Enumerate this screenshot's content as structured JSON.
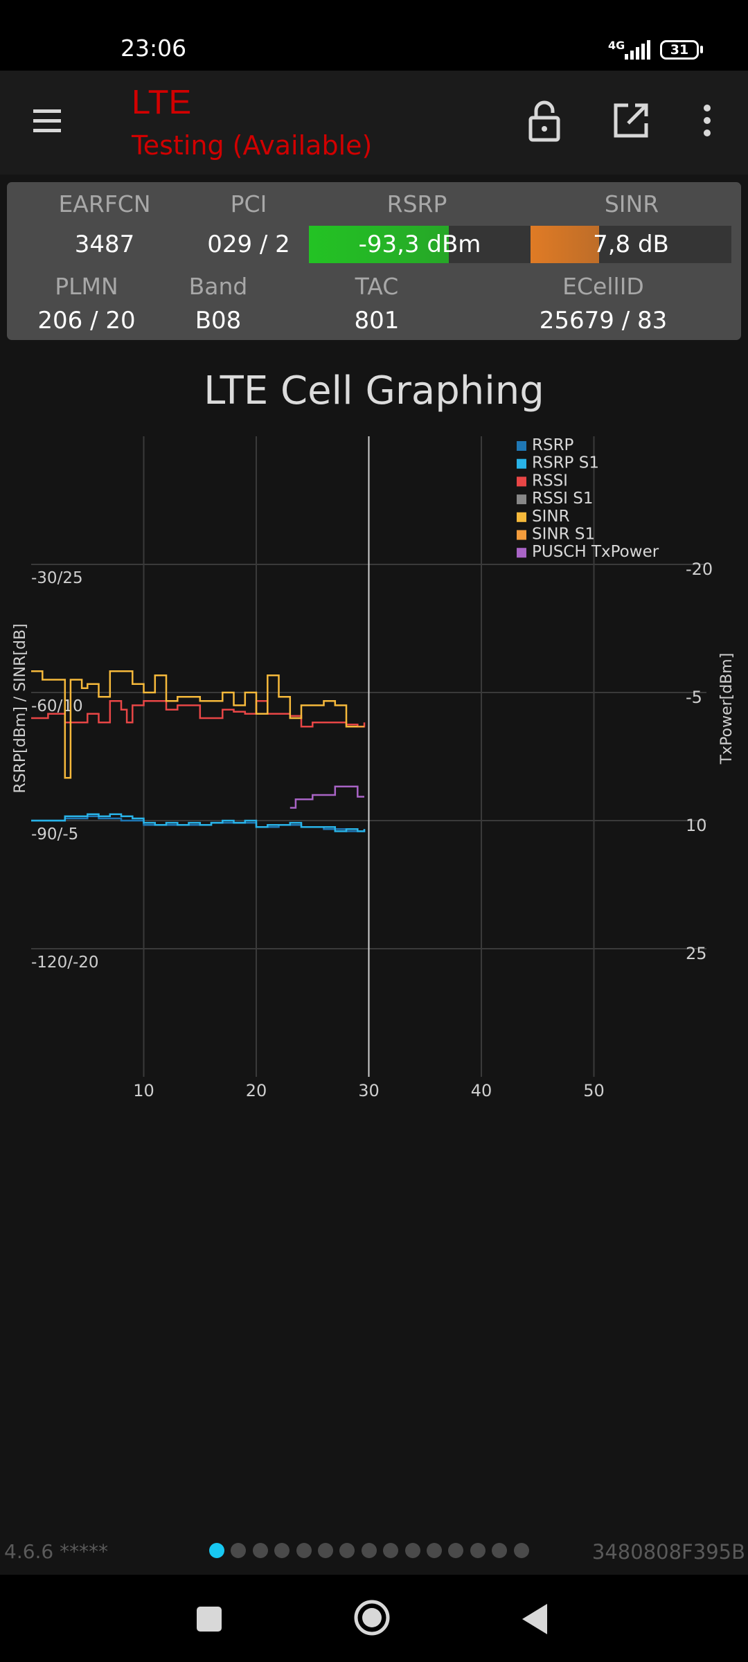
{
  "status_bar": {
    "time": "23:06",
    "network": "4G",
    "battery": "31"
  },
  "app_bar": {
    "title": "LTE",
    "subtitle": "Testing (Available)",
    "icons": [
      "menu-icon",
      "lock-open-icon",
      "open-external-icon",
      "more-vert-icon"
    ]
  },
  "cell_info": {
    "earfcn": {
      "label": "EARFCN",
      "value": "3487"
    },
    "pci": {
      "label": "PCI",
      "value": "029 / 2"
    },
    "rsrp": {
      "label": "RSRP",
      "value": "-93,3 dBm",
      "fill_fraction": 0.63,
      "color": "#23c324"
    },
    "sinr": {
      "label": "SINR",
      "value": "7,8 dB",
      "fill_fraction": 0.34,
      "color": "#e07b25"
    },
    "plmn": {
      "label": "PLMN",
      "value": "206 / 20"
    },
    "band": {
      "label": "Band",
      "value": "B08"
    },
    "tac": {
      "label": "TAC",
      "value": "801"
    },
    "ecellid": {
      "label": "ECellID",
      "value": "25679 / 83"
    }
  },
  "graph": {
    "title": "LTE Cell Graphing"
  },
  "chart_data": {
    "type": "line",
    "title": "LTE Cell Graphing",
    "xlabel": "",
    "ylabel_left": "RSRP[dBm] / SINR[dB]",
    "ylabel_right": "TxPower[dBm]",
    "x_ticks": [
      "10",
      "20",
      "30",
      "40",
      "50"
    ],
    "xlim": [
      0,
      60
    ],
    "y_left_ticks": [
      "-30/25",
      "-60/10",
      "-90/-5",
      "-120/-20"
    ],
    "y_right_ticks": [
      "-20",
      "-5",
      "10",
      "25"
    ],
    "ylim_rsrp": [
      -150,
      0
    ],
    "y_right_lim": [
      40,
      -35
    ],
    "cursor_x": 30,
    "grid": true,
    "legend_position": "top-right",
    "legend": [
      "RSRP",
      "RSRP S1",
      "RSSI",
      "RSSI S1",
      "SINR",
      "SINR S1",
      "PUSCH TxPower"
    ],
    "series": [
      {
        "name": "RSRP",
        "color": "#1f77b4",
        "axis": "rsrp",
        "x": [
          0,
          2,
          3,
          4,
          5,
          6,
          8,
          10,
          12,
          14,
          16,
          18,
          20,
          22,
          24,
          26,
          28,
          29.6
        ],
        "y": [
          -90,
          -90,
          -89.5,
          -89.5,
          -89,
          -89.5,
          -90,
          -91,
          -91,
          -91,
          -90.5,
          -90.5,
          -91.5,
          -91,
          -91.5,
          -92,
          -92.5,
          -92
        ]
      },
      {
        "name": "RSRP S1",
        "color": "#29b3e8",
        "axis": "rsrp",
        "x": [
          0,
          2,
          3,
          4,
          5,
          6,
          7,
          8,
          9,
          10,
          11,
          12,
          13,
          14,
          15,
          16,
          17,
          18,
          19,
          20,
          21,
          22,
          23,
          24,
          25,
          26,
          27,
          28,
          29,
          29.6
        ],
        "y": [
          -90,
          -90,
          -89,
          -89,
          -88.5,
          -89,
          -88.5,
          -89,
          -89.5,
          -90.5,
          -91,
          -90.5,
          -91,
          -90.5,
          -91,
          -90.5,
          -90,
          -90.5,
          -90,
          -91.5,
          -91,
          -91,
          -90.5,
          -91.5,
          -91.5,
          -91.5,
          -92.5,
          -92,
          -92.5,
          -92
        ]
      },
      {
        "name": "RSSI",
        "color": "#e84646",
        "axis": "rsrp",
        "x": [
          0,
          1.5,
          3,
          4,
          5,
          6,
          7,
          8,
          8.5,
          9,
          10,
          12,
          13,
          14,
          15,
          16,
          17,
          18,
          19,
          20,
          21,
          22,
          23,
          24,
          25,
          26,
          27,
          28,
          29,
          29.6
        ],
        "y": [
          -66,
          -65,
          -67,
          -67,
          -65,
          -67,
          -62,
          -64,
          -67,
          -63,
          -62,
          -64,
          -63,
          -63,
          -66,
          -66,
          -64,
          -64.5,
          -65,
          -62,
          -65,
          -65,
          -65.5,
          -68,
          -67,
          -67,
          -67,
          -67.5,
          -68,
          -67
        ]
      },
      {
        "name": "SINR",
        "color": "#f6b93b",
        "axis": "rsrp",
        "x": [
          0,
          1,
          2,
          3,
          3.5,
          4.5,
          5,
          6,
          7,
          8,
          9,
          10,
          11,
          12,
          13,
          14,
          15,
          16,
          17,
          18,
          19,
          20,
          21,
          22,
          23,
          24,
          25,
          26,
          27,
          28,
          29,
          29.6
        ],
        "y": [
          -55,
          -57,
          -57,
          -80,
          -57,
          -59,
          -58,
          -61,
          -55,
          -55,
          -58,
          -60,
          -56,
          -62,
          -61,
          -61,
          -62,
          -62,
          -60,
          -63,
          -60,
          -65,
          -56,
          -61,
          -66,
          -63,
          -63,
          -62,
          -63,
          -68,
          -68,
          -68
        ]
      },
      {
        "name": "SINR S1",
        "color": "#f39c3c",
        "axis": "rsrp",
        "x": [
          29,
          29.6
        ],
        "y": [
          -68,
          -68
        ]
      },
      {
        "name": "PUSCH TxPower",
        "color": "#a964c6",
        "axis": "tx",
        "x": [
          23,
          23.5,
          25,
          27,
          29,
          29.6
        ],
        "y": [
          8.5,
          7.5,
          7,
          6,
          7.2,
          7.2
        ]
      }
    ]
  },
  "footer": {
    "version": "4.6.6 *****",
    "device_id": "3480808F395B",
    "page_count": 15,
    "active_page": 1,
    "active_dot_color": "#18c8f2"
  },
  "nav_bar": {
    "icons": [
      "recents-icon",
      "home-icon",
      "back-icon"
    ]
  }
}
